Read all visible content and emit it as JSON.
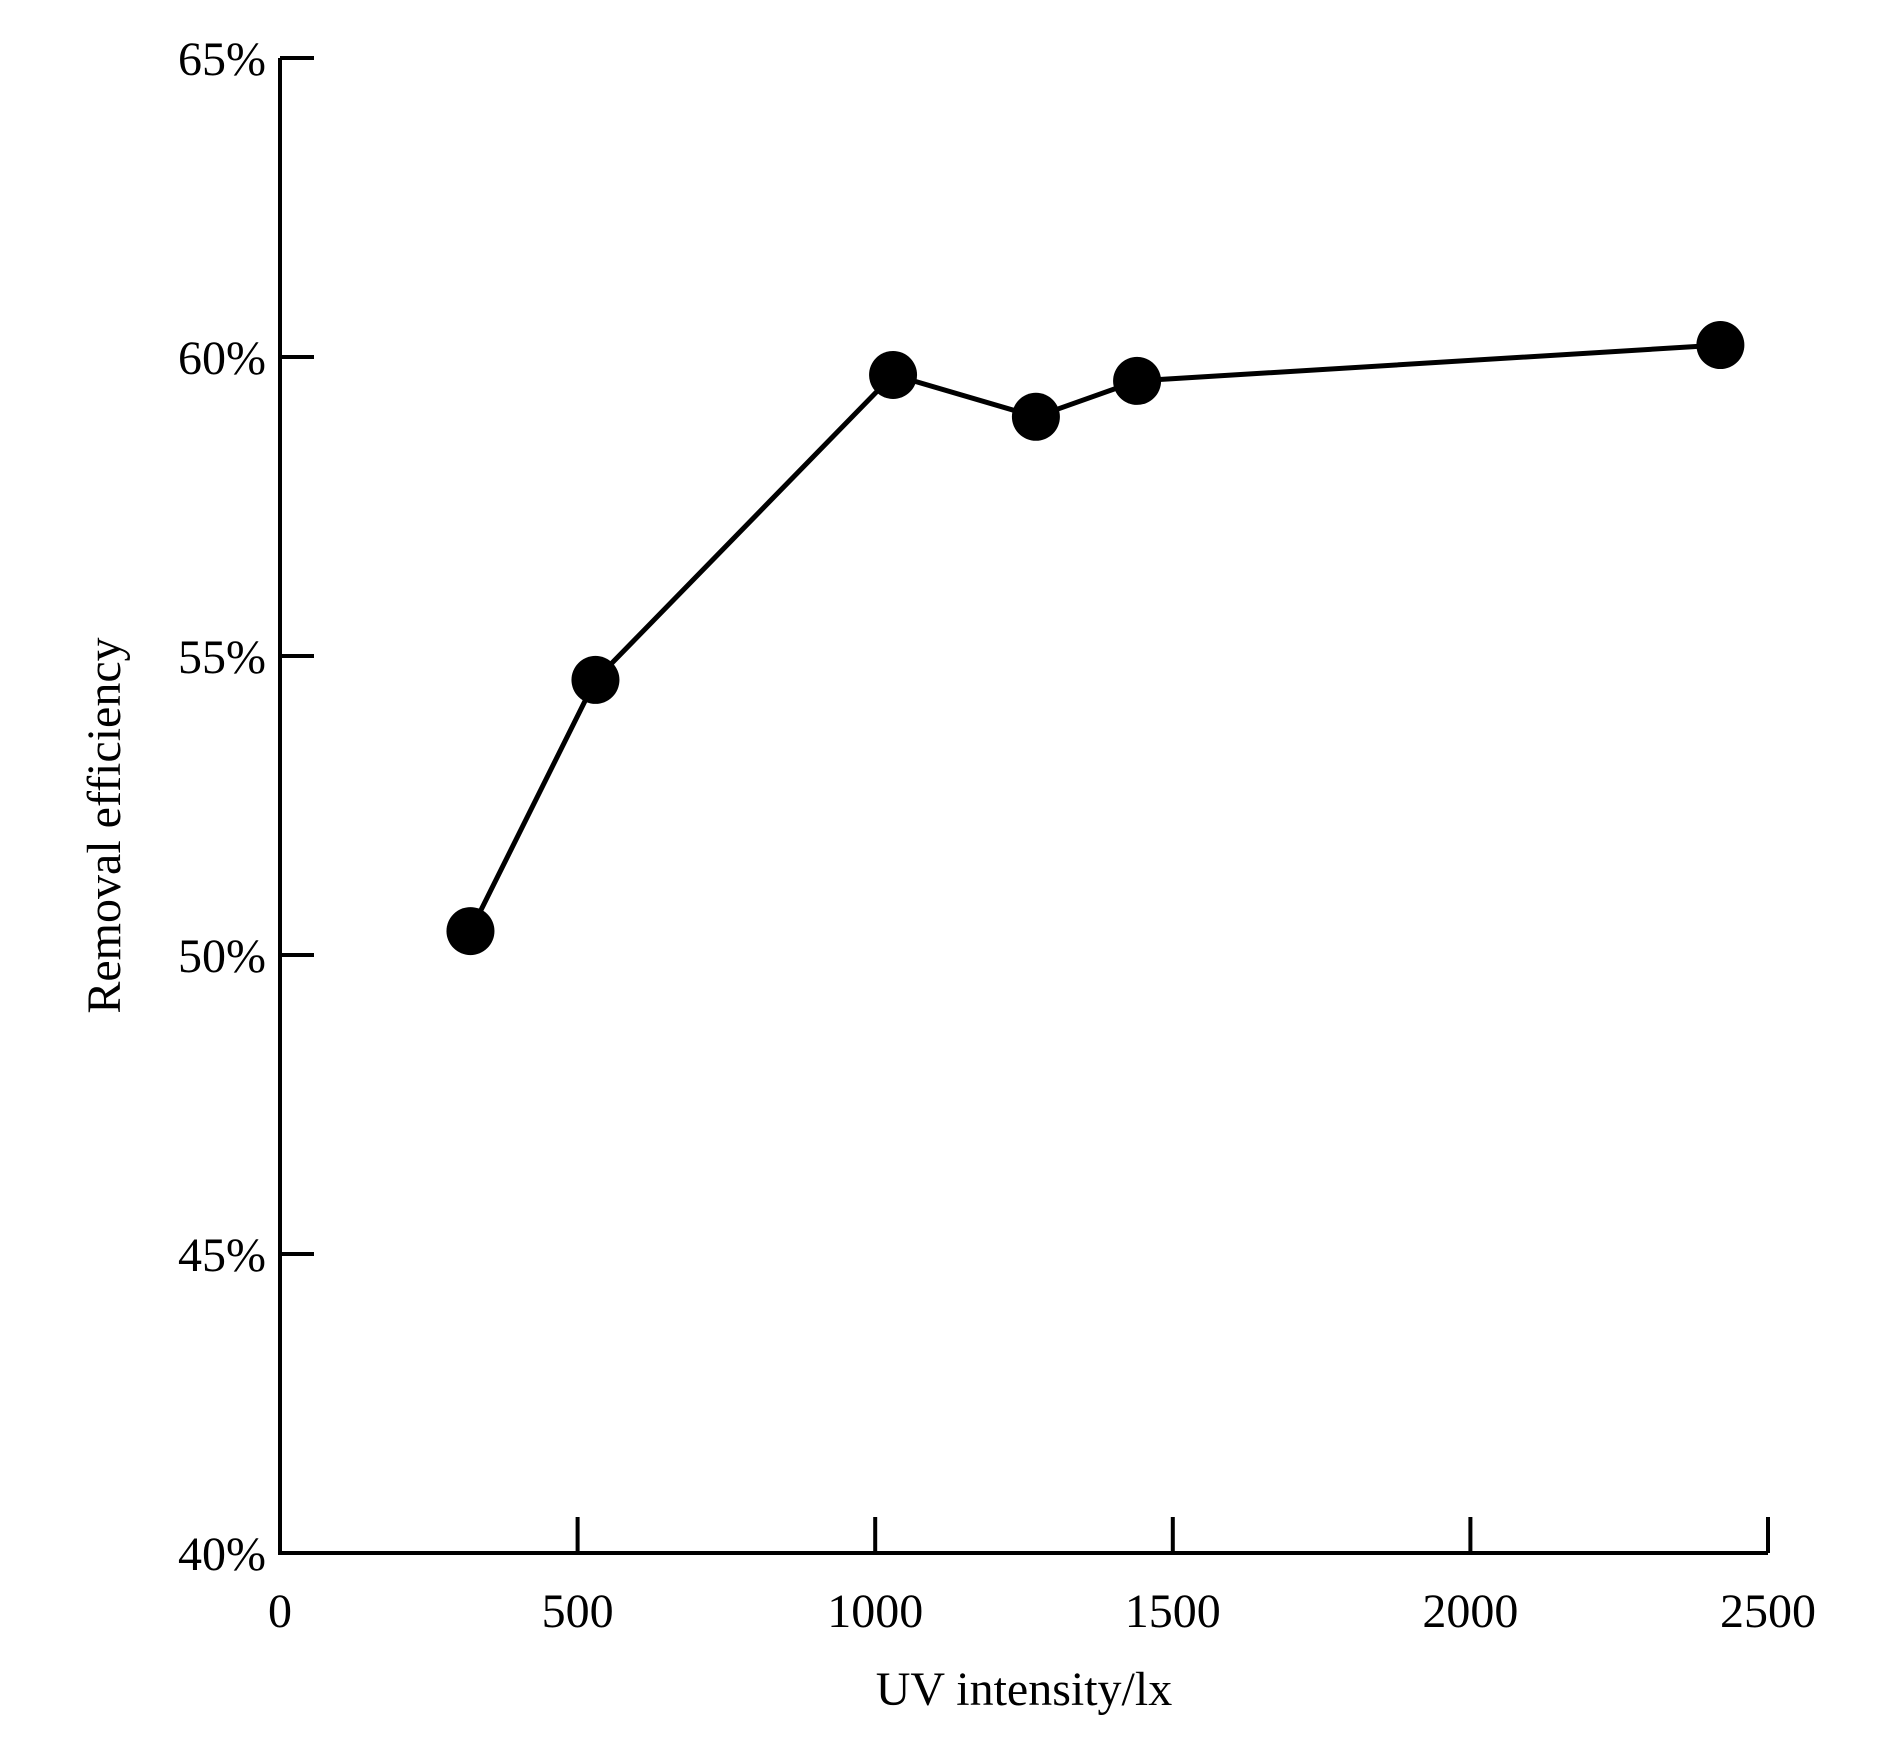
{
  "chart_data": {
    "type": "line",
    "title": "",
    "xlabel": "UV intensity/lx",
    "ylabel": "Removal efficiency",
    "xlim": [
      0,
      2500
    ],
    "ylim": [
      0.4,
      0.65
    ],
    "x_ticks": [
      0,
      500,
      1000,
      1500,
      2000,
      2500
    ],
    "x_tick_labels": [
      "0",
      "500",
      "1000",
      "1500",
      "2000",
      "2500"
    ],
    "y_ticks": [
      0.4,
      0.45,
      0.5,
      0.55,
      0.6,
      0.65
    ],
    "y_tick_labels": [
      "40%",
      "45%",
      "50%",
      "55%",
      "60%",
      "65%"
    ],
    "grid": false,
    "legend": "none",
    "series": [
      {
        "x": [
          320,
          530,
          1030,
          1270,
          1440,
          2420
        ],
        "y": [
          0.504,
          0.546,
          0.597,
          0.59,
          0.596,
          0.602
        ],
        "marker": "filled-circle",
        "color": "#000000"
      }
    ]
  }
}
